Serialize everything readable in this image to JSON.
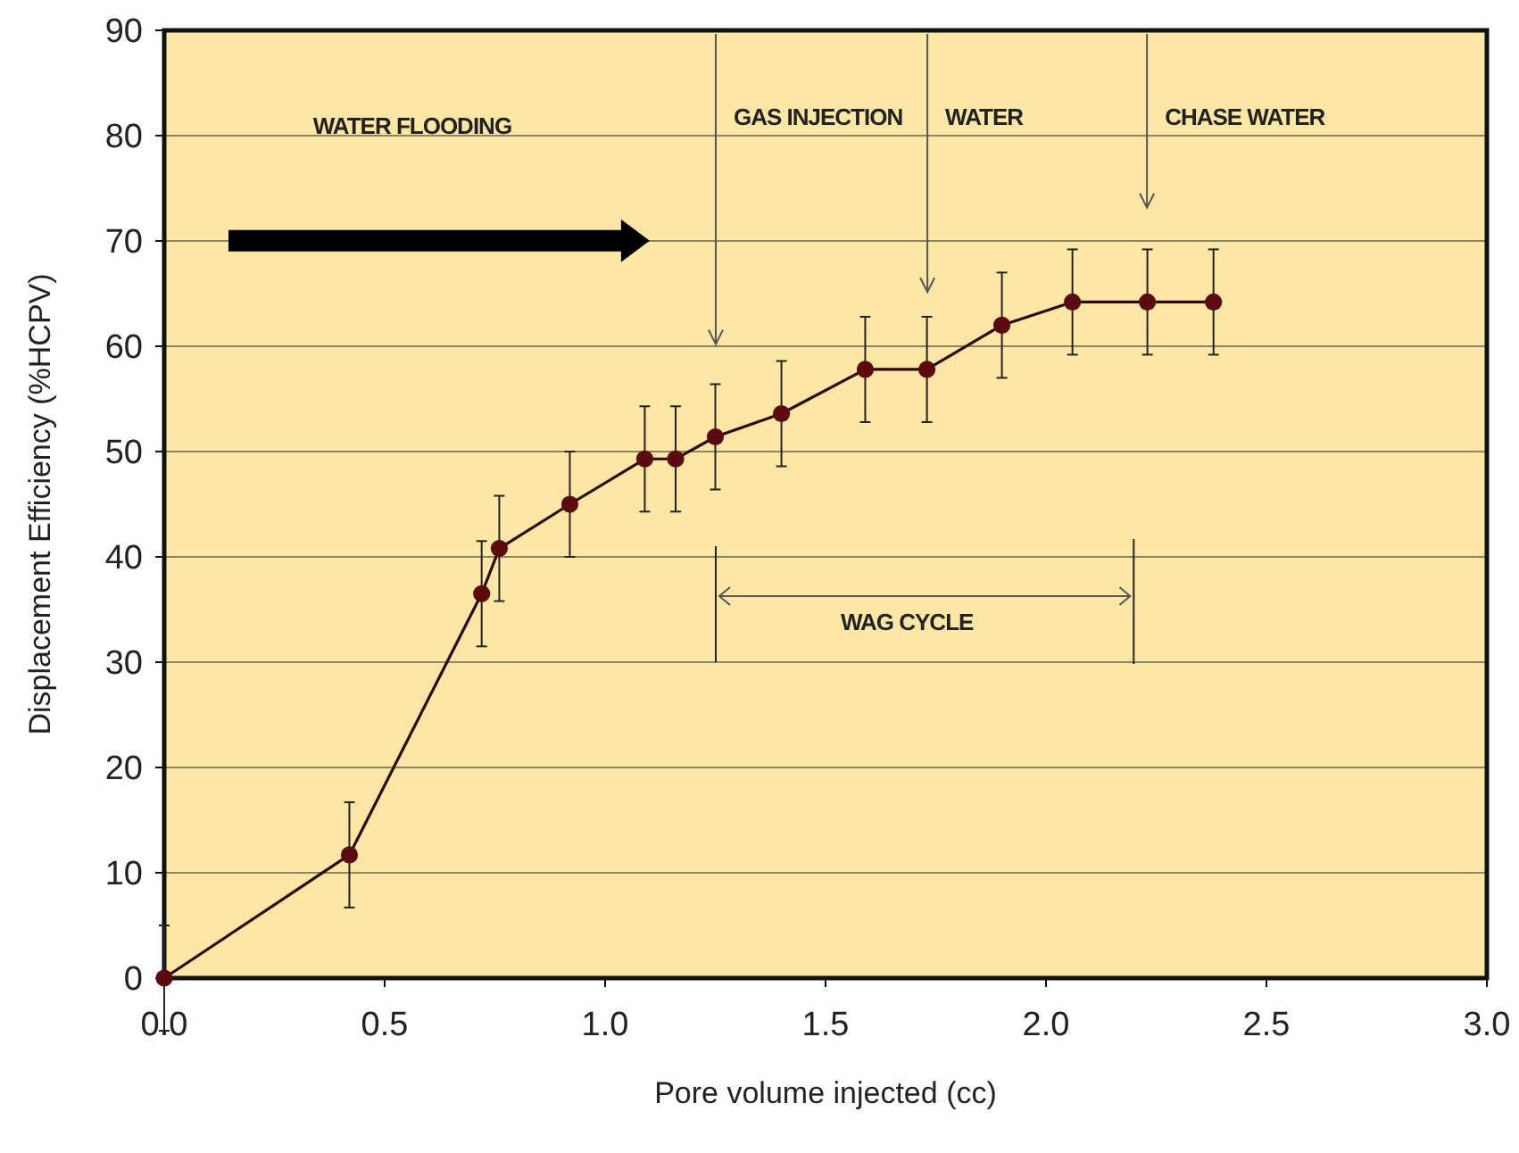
{
  "chart_data": {
    "type": "line",
    "xlabel": "Pore volume injected (cc)",
    "ylabel": "Displacement Efficiency (%HCPV)",
    "x": [
      0,
      0.42,
      0.72,
      0.76,
      0.92,
      1.09,
      1.16,
      1.25,
      1.4,
      1.59,
      1.73,
      1.9,
      2.06,
      2.23,
      2.38
    ],
    "series": [
      {
        "color": "#5c0a0f",
        "values": [
          0,
          11.7,
          36.5,
          40.8,
          45,
          49.3,
          49.3,
          51.4,
          53.6,
          57.8,
          57.8,
          62,
          64.2,
          64.2,
          64.2
        ],
        "errors": [
          5,
          5,
          5,
          5,
          5,
          5,
          5,
          5,
          5,
          5,
          5,
          5,
          5,
          5,
          5
        ]
      }
    ],
    "xlim": [
      0,
      3
    ],
    "xticks": [
      {
        "value": 0,
        "label": "0.0"
      },
      0.5,
      {
        "value": 1,
        "label": "1.0"
      },
      1.5,
      {
        "value": 2,
        "label": "2.0"
      },
      2.5,
      {
        "value": 3,
        "label": "3.0"
      }
    ],
    "ylim": [
      0,
      90
    ],
    "yticks": [
      0,
      10,
      20,
      30,
      40,
      50,
      60,
      70,
      80,
      90
    ],
    "grid": "y",
    "marker": "circle",
    "line_style": "solid",
    "annotations": [
      "WATER FLOODING",
      "GAS INJECTION",
      "WATER",
      "CHASE WATER",
      "WAG CYCLE"
    ]
  }
}
